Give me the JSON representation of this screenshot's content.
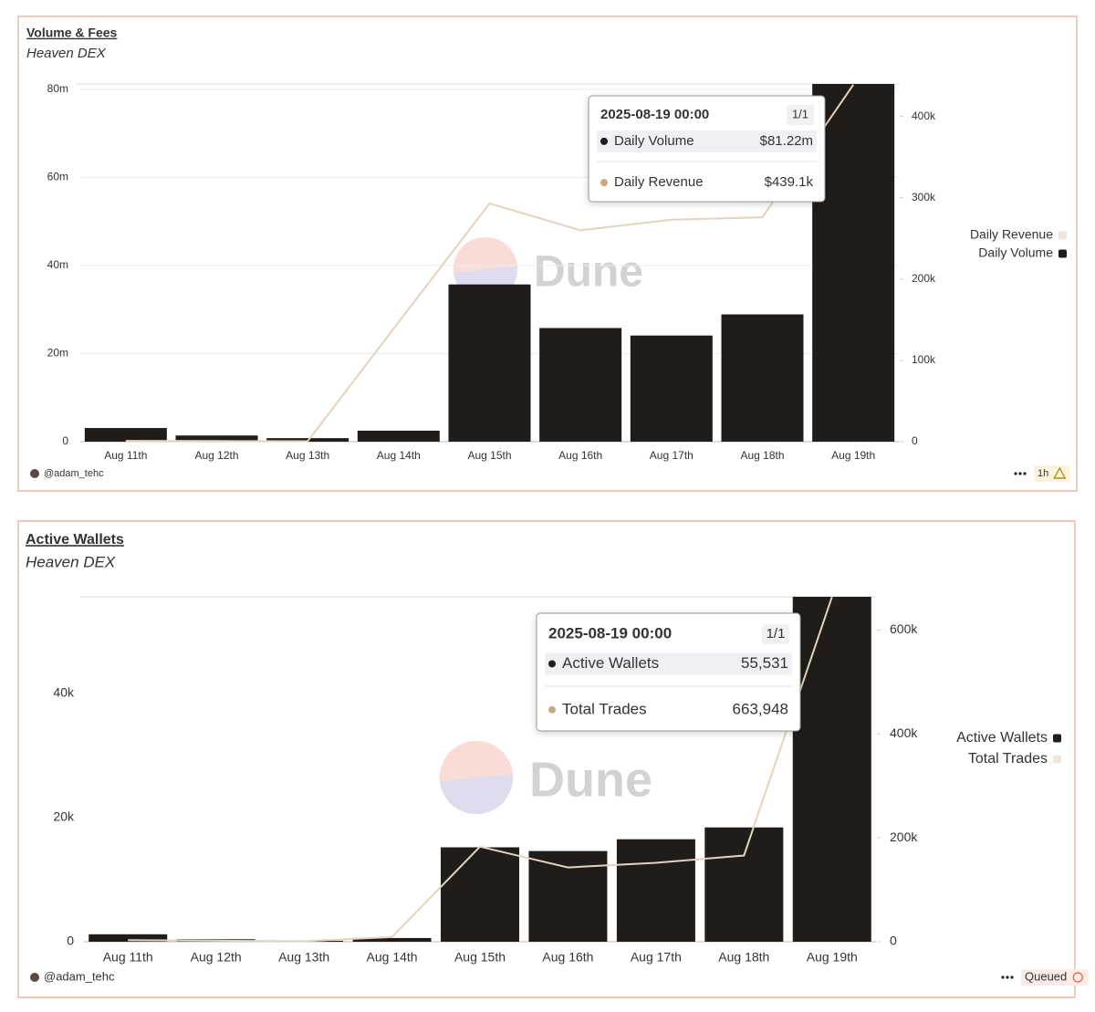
{
  "chart_data": [
    {
      "type": "bar",
      "title": "Volume & Fees",
      "subtitle": "Heaven DEX",
      "watermark": "Dune",
      "author": "@adam_tehc",
      "status": "1h",
      "categories": [
        "Aug 11th",
        "Aug 12th",
        "Aug 13th",
        "Aug 14th",
        "Aug 15th",
        "Aug 16th",
        "Aug 17th",
        "Aug 18th",
        "Aug 19th"
      ],
      "series": [
        {
          "name": "Daily Revenue",
          "color": "#e3d3bf",
          "axis": "y2",
          "values": [
            1000,
            800,
            600,
            147000,
            293000,
            260000,
            273000,
            276000,
            439100
          ],
          "value_labels": [
            null,
            null,
            null,
            null,
            null,
            null,
            null,
            null,
            "$439.1k"
          ]
        },
        {
          "name": "Daily Volume",
          "color": "#1f1c19",
          "values": [
            3100000,
            1400000,
            800000,
            2500000,
            35700000,
            25800000,
            24100000,
            28900000,
            81220000
          ],
          "value_labels": [
            null,
            null,
            null,
            null,
            null,
            null,
            null,
            null,
            "$81.22m"
          ]
        }
      ],
      "ylim": [
        0,
        81220000
      ],
      "yticks": [
        0,
        {
          "value": 20000000,
          "label": "20m"
        },
        {
          "value": 40000000,
          "label": "40m"
        },
        {
          "value": 60000000,
          "label": "60m"
        },
        {
          "value": 80000000,
          "label": "80m"
        }
      ],
      "y2lim": [
        0,
        440000
      ],
      "y2ticks": [
        0,
        {
          "value": 100000,
          "label": "100k"
        },
        {
          "value": 200000,
          "label": "200k"
        },
        {
          "value": 300000,
          "label": "300k"
        },
        {
          "value": 400000,
          "label": "400k"
        }
      ],
      "tooltip": {
        "title": "2025-08-19 00:00",
        "page": "1/1"
      },
      "legend": "right",
      "grid": true
    },
    {
      "type": "bar",
      "title": "Active Wallets",
      "subtitle": "Heaven DEX",
      "watermark": "Dune",
      "author": "@adam_tehc",
      "status": "Queued",
      "categories": [
        "Aug 11th",
        "Aug 12th",
        "Aug 13th",
        "Aug 14th",
        "Aug 15th",
        "Aug 16th",
        "Aug 17th",
        "Aug 18th",
        "Aug 19th"
      ],
      "series": [
        {
          "name": "Active Wallets",
          "color": "#1f1c19",
          "values": [
            1200,
            400,
            150,
            600,
            15200,
            14600,
            16500,
            18400,
            55531
          ],
          "value_labels": [
            null,
            null,
            null,
            null,
            null,
            null,
            null,
            null,
            "55,531"
          ]
        },
        {
          "name": "Total Trades",
          "color": "#e3d3bf",
          "axis": "y2",
          "values": [
            3000,
            2000,
            1000,
            9000,
            183000,
            143000,
            152000,
            166000,
            663948
          ],
          "value_labels": [
            null,
            null,
            null,
            null,
            null,
            null,
            null,
            null,
            "663,948"
          ]
        }
      ],
      "ylim": [
        0,
        55531
      ],
      "yticks": [
        0,
        {
          "value": 20000,
          "label": "20k"
        },
        {
          "value": 40000,
          "label": "40k"
        }
      ],
      "y2lim": [
        0,
        664000
      ],
      "y2ticks": [
        0,
        {
          "value": 200000,
          "label": "200k"
        },
        {
          "value": 400000,
          "label": "400k"
        },
        {
          "value": 600000,
          "label": "600k"
        }
      ],
      "tooltip": {
        "title": "2025-08-19 00:00",
        "page": "1/1"
      },
      "legend": "right",
      "grid": false
    }
  ]
}
